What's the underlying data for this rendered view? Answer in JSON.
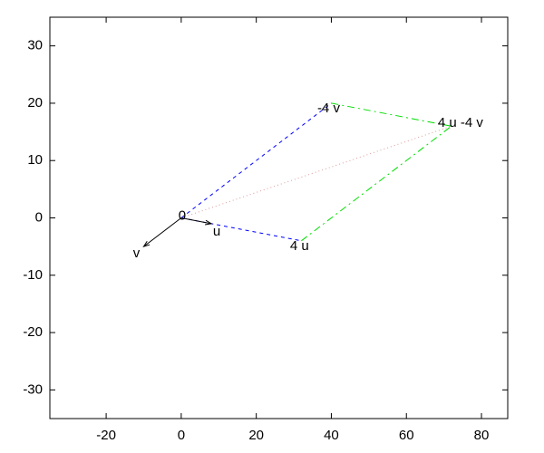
{
  "chart_data": {
    "type": "vector",
    "xlim": [
      -35,
      87
    ],
    "ylim": [
      -35,
      35
    ],
    "xticks": [
      -20,
      0,
      20,
      40,
      60,
      80
    ],
    "yticks": [
      -30,
      -20,
      -10,
      0,
      10,
      20,
      30
    ],
    "arrows": [
      {
        "label": "u",
        "x": [
          0,
          8
        ],
        "y": [
          0,
          -1
        ],
        "color": "#000000"
      },
      {
        "label": "v",
        "x": [
          0,
          -10
        ],
        "y": [
          0,
          -5
        ],
        "color": "#000000"
      }
    ],
    "segments": [
      {
        "x": [
          0,
          40
        ],
        "y": [
          0,
          20
        ],
        "color": "#0000ff",
        "dash": "dashed"
      },
      {
        "x": [
          0,
          32
        ],
        "y": [
          0,
          -4
        ],
        "color": "#0000ff",
        "dash": "dashed"
      },
      {
        "x": [
          40,
          72
        ],
        "y": [
          20,
          16
        ],
        "color": "#00dd00",
        "dash": "dashdot"
      },
      {
        "x": [
          32,
          72
        ],
        "y": [
          -4,
          16
        ],
        "color": "#00dd00",
        "dash": "dashdot"
      },
      {
        "x": [
          0,
          72
        ],
        "y": [
          0,
          16
        ],
        "color": "#dd9999",
        "dash": "dotted"
      }
    ],
    "labels": [
      {
        "text": "0",
        "x": 0,
        "y": 0
      },
      {
        "text": "4 u",
        "x": 32,
        "y": -4
      },
      {
        "text": "-4 v",
        "x": 40,
        "y": 20
      },
      {
        "text": "4 u -4 v",
        "x": 72,
        "y": 16
      }
    ]
  }
}
